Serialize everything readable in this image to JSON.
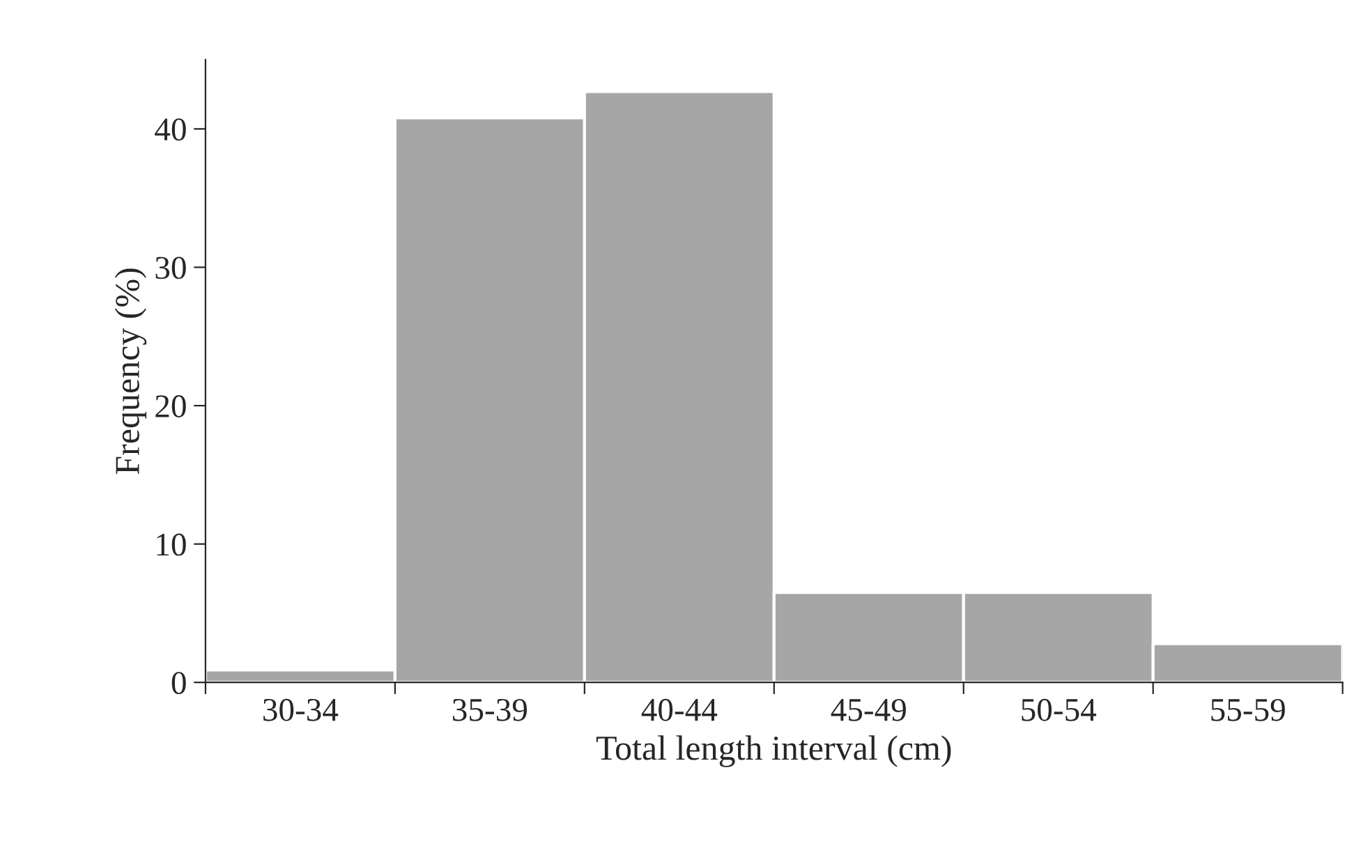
{
  "chart_data": {
    "type": "bar",
    "xlabel": "Total length interval (cm)",
    "ylabel": "Frequency (%)",
    "categories": [
      "30-34",
      "35-39",
      "40-44",
      "45-49",
      "50-54",
      "55-59"
    ],
    "values": [
      0.9,
      40.8,
      42.7,
      6.5,
      6.5,
      2.8
    ],
    "color": "#a6a6a6",
    "ylim": [
      0,
      45
    ],
    "yticks": [
      0,
      10,
      20,
      30,
      40
    ],
    "grid": false
  }
}
